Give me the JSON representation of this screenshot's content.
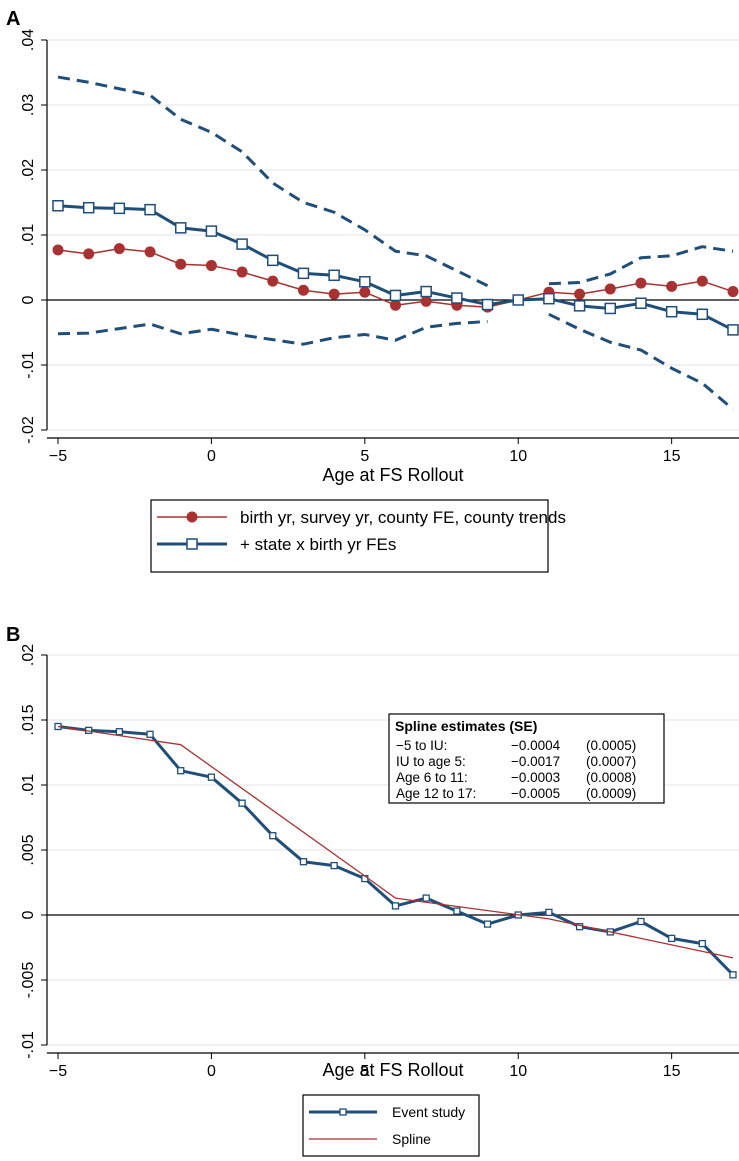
{
  "colors": {
    "navy": "#1f4e79",
    "red": "#a83232",
    "grid": "#e3e3e3",
    "axis": "#000000"
  },
  "chart_data": [
    {
      "panel": "A",
      "type": "line",
      "xlabel": "Age at FS Rollout",
      "ylabel": "",
      "xlim": [
        -5,
        17
      ],
      "ylim": [
        -0.02,
        0.04
      ],
      "xticks": [
        -5,
        0,
        5,
        10,
        15
      ],
      "xtick_labels": [
        "−5",
        "0",
        "5",
        "10",
        "15"
      ],
      "yticks": [
        -0.02,
        -0.01,
        0,
        0.01,
        0.02,
        0.03,
        0.04
      ],
      "ytick_labels": [
        "-.02",
        "-.01",
        "0",
        ".01",
        ".02",
        ".03",
        ".04"
      ],
      "grid": true,
      "legend_position": "bottom",
      "x": [
        -5,
        -4,
        -3,
        -2,
        -1,
        0,
        1,
        2,
        3,
        4,
        5,
        6,
        7,
        8,
        9,
        10,
        11,
        12,
        13,
        14,
        15,
        16,
        17
      ],
      "series": [
        {
          "name": "birth yr, survey yr, county FE, county trends",
          "marker": "circle",
          "color": "#a83232",
          "values": [
            0.0077,
            0.0071,
            0.0079,
            0.0074,
            0.0055,
            0.0053,
            0.0043,
            0.0029,
            0.0015,
            0.0009,
            0.0012,
            -0.0008,
            -0.0002,
            -0.0008,
            -0.0011,
            0.0,
            0.0012,
            0.0009,
            0.0017,
            0.0026,
            0.0021,
            0.0029,
            0.0013
          ]
        },
        {
          "name": "+ state x birth yr FEs",
          "marker": "square",
          "color": "#1f4e79",
          "values": [
            0.0145,
            0.0142,
            0.0141,
            0.0139,
            0.0111,
            0.0106,
            0.0086,
            0.0061,
            0.0041,
            0.0038,
            0.0028,
            0.0007,
            0.0013,
            0.0003,
            -0.0007,
            0.0,
            0.0002,
            -0.0009,
            -0.0013,
            -0.0005,
            -0.0018,
            -0.0022,
            -0.0046
          ]
        },
        {
          "name": "",
          "style": "dashed",
          "color": "#1f4e79",
          "legend": false,
          "values": [
            0.0343,
            0.0335,
            0.0325,
            0.0315,
            0.0278,
            0.0258,
            0.0228,
            0.018,
            0.015,
            0.0135,
            0.0108,
            0.0075,
            0.0068,
            0.0045,
            0.0022,
            null,
            0.0025,
            0.0027,
            0.004,
            0.0065,
            0.0068,
            0.0082,
            0.0075
          ]
        },
        {
          "name": "",
          "style": "dashed",
          "color": "#1f4e79",
          "legend": false,
          "values": [
            -0.0052,
            -0.0051,
            -0.0044,
            -0.0037,
            -0.0052,
            -0.0045,
            -0.0054,
            -0.0061,
            -0.0068,
            -0.0058,
            -0.0053,
            -0.0062,
            -0.0042,
            -0.0036,
            -0.0033,
            null,
            -0.0022,
            -0.0045,
            -0.0065,
            -0.0077,
            -0.0105,
            -0.0128,
            -0.0168
          ]
        }
      ]
    },
    {
      "panel": "B",
      "type": "line",
      "xlabel": "Age at FS Rollout",
      "ylabel": "",
      "xlim": [
        -5,
        17
      ],
      "ylim": [
        -0.01,
        0.02
      ],
      "xticks": [
        -5,
        0,
        5,
        10,
        15
      ],
      "xtick_labels": [
        "−5",
        "0",
        "5",
        "10",
        "15"
      ],
      "yticks": [
        -0.01,
        -0.005,
        0,
        0.005,
        0.01,
        0.015,
        0.02
      ],
      "ytick_labels": [
        "-.01",
        "-.005",
        "0",
        ".005",
        ".01",
        ".015",
        ".02"
      ],
      "grid": true,
      "legend_position": "bottom",
      "series": [
        {
          "name": "Event study",
          "marker": "square-small",
          "color": "#1f4e79",
          "x": [
            -5,
            -4,
            -3,
            -2,
            -1,
            0,
            1,
            2,
            3,
            4,
            5,
            6,
            7,
            8,
            9,
            10,
            11,
            12,
            13,
            14,
            15,
            16,
            17
          ],
          "values": [
            0.0145,
            0.0142,
            0.0141,
            0.0139,
            0.0111,
            0.0106,
            0.0086,
            0.0061,
            0.0041,
            0.0038,
            0.0028,
            0.0007,
            0.0013,
            0.0003,
            -0.0007,
            0.0,
            0.0002,
            -0.0009,
            -0.0013,
            -0.0005,
            -0.0018,
            -0.0022,
            -0.0046
          ]
        },
        {
          "name": "Spline",
          "marker": "none",
          "color": "#a83232",
          "x": [
            -5,
            -1,
            5,
            6,
            11,
            17
          ],
          "values": [
            0.0145,
            0.0131,
            0.003,
            0.0013,
            -0.0003,
            -0.0033
          ]
        }
      ],
      "annotation": {
        "title": "Spline estimates (SE)",
        "rows": [
          {
            "label": "−5 to IU:",
            "estimate": "−0.0004",
            "se": "(0.0005)"
          },
          {
            "label": "IU to age 5:",
            "estimate": "−0.0017",
            "se": "(0.0007)"
          },
          {
            "label": "Age 6 to 11:",
            "estimate": "−0.0003",
            "se": "(0.0008)"
          },
          {
            "label": "Age 12 to 17:",
            "estimate": "−0.0005",
            "se": "(0.0009)"
          }
        ]
      }
    }
  ]
}
